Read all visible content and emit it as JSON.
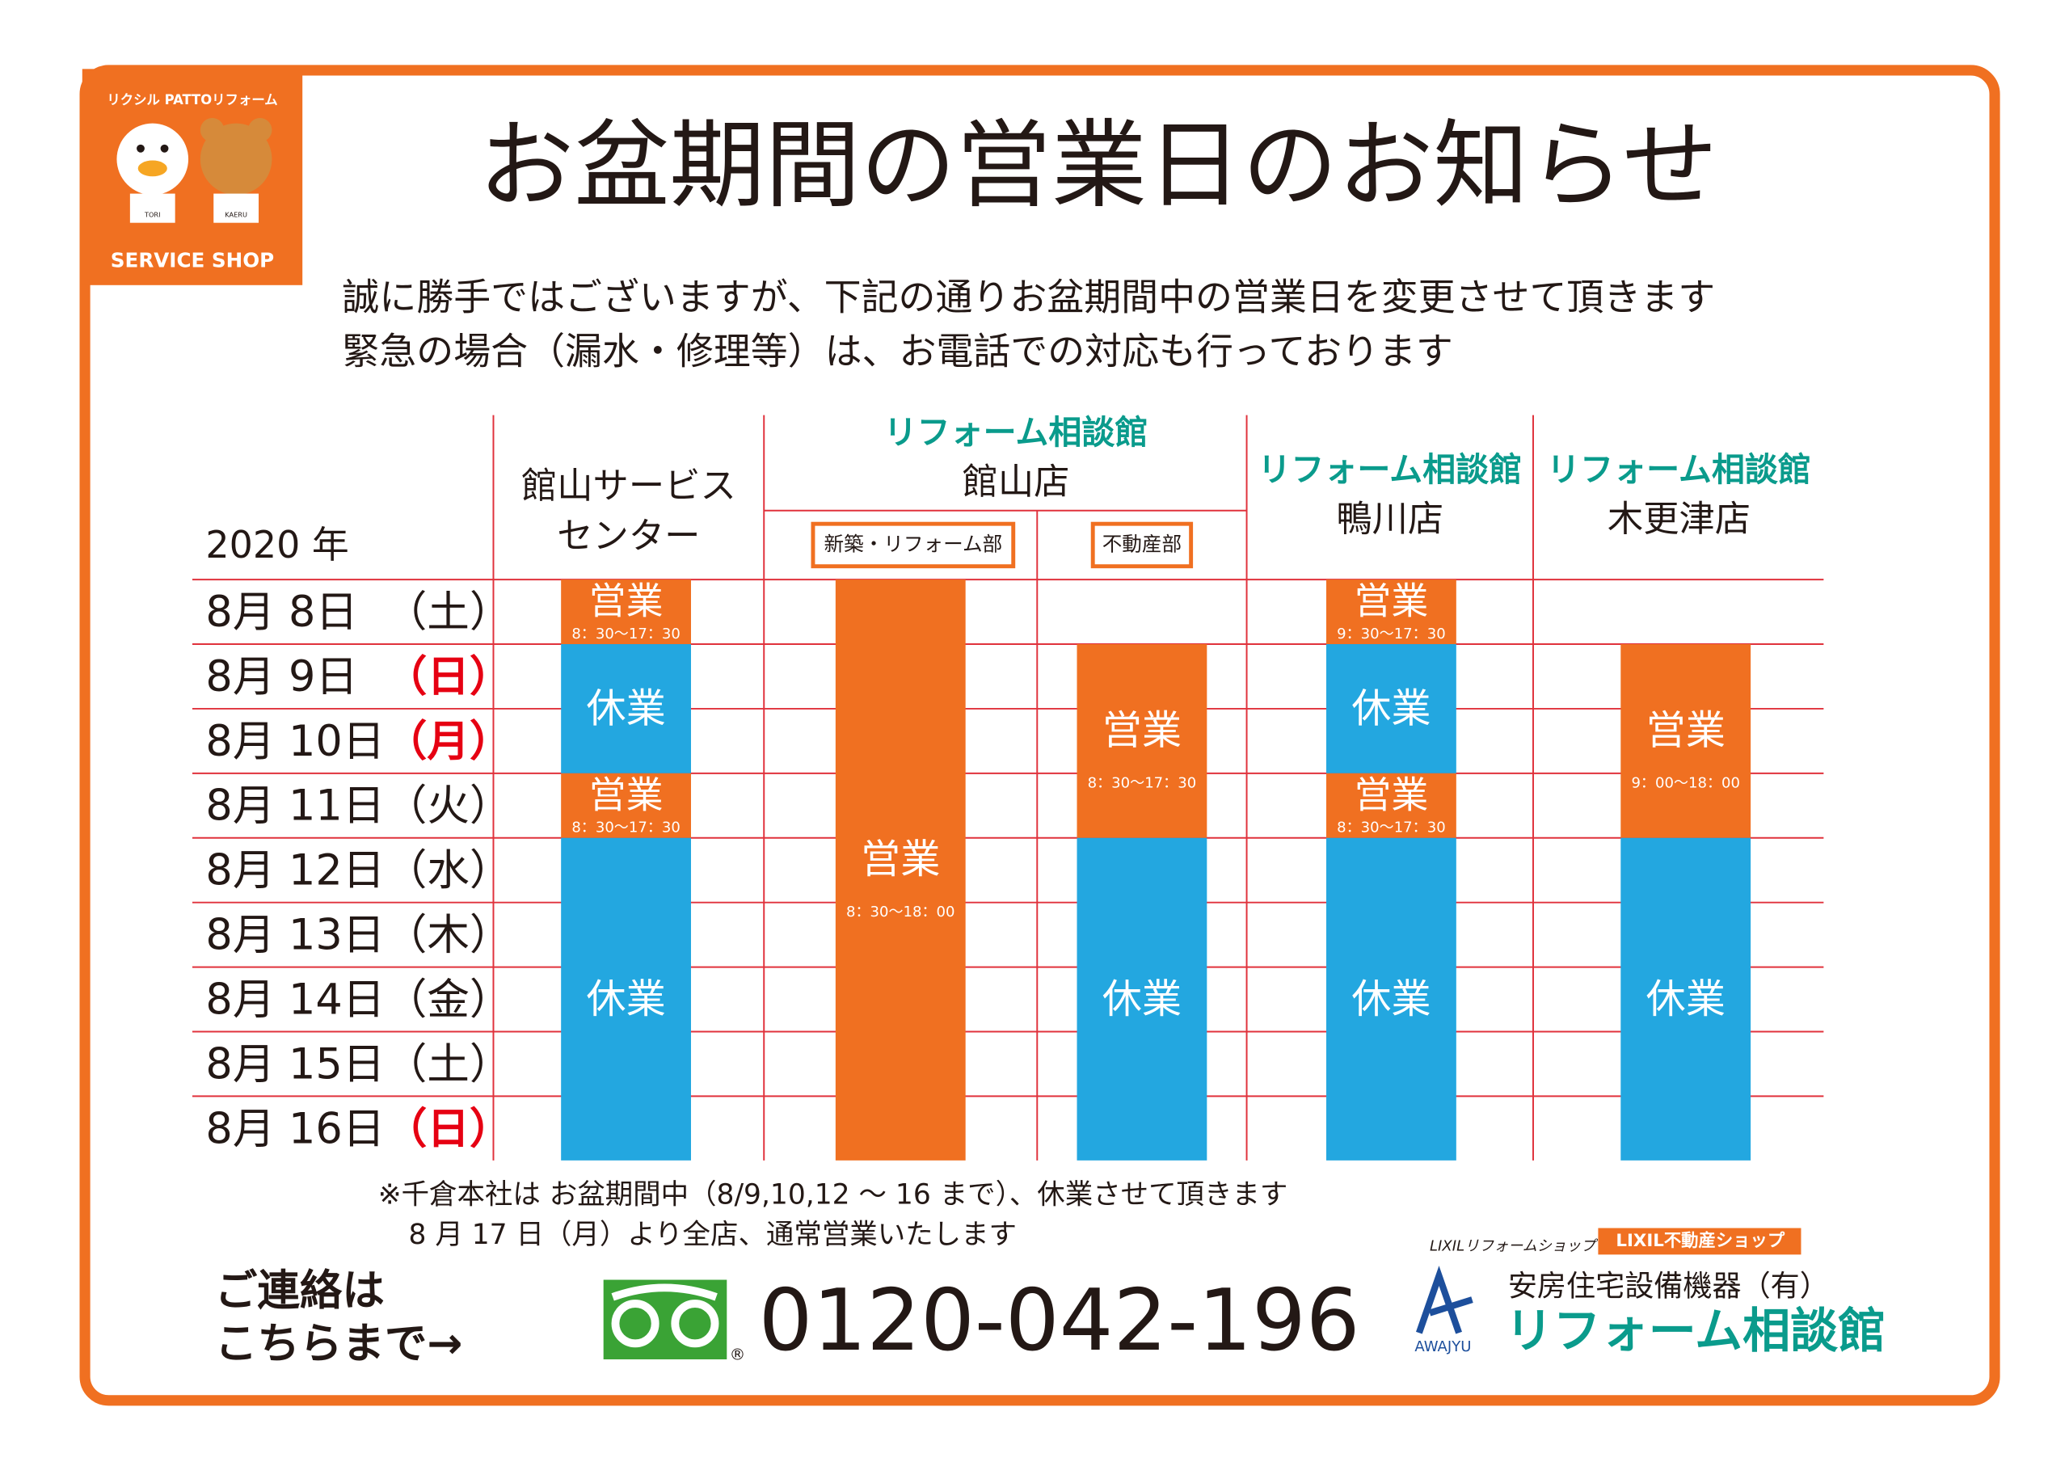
{
  "logo": {
    "brand": "リクシル PATTOリフォーム",
    "shop": "SERVICE SHOP",
    "char1": "TORI",
    "char2": "KAERU"
  },
  "title": "お盆期間の営業日のお知らせ",
  "intro": [
    "誠に勝手ではございますが、下記の通りお盆期間中の営業日を変更させて頂きます",
    "緊急の場合（漏水・修理等）は、お電話での対応も行っております"
  ],
  "table": {
    "year": "2020 年",
    "columns": [
      {
        "lines": [
          "館山サービス",
          "センター"
        ]
      },
      {
        "brand": "リフォーム相談館",
        "lines": [
          "館山店"
        ],
        "subs": [
          "新築・リフォーム部",
          "不動産部"
        ]
      },
      {
        "brand": "リフォーム相談館",
        "lines": [
          "鴨川店"
        ]
      },
      {
        "brand": "リフォーム相談館",
        "lines": [
          "木更津店"
        ]
      }
    ],
    "rows": [
      {
        "date": "8月  8日",
        "weekday": "（土）",
        "weekday_color": "#231815"
      },
      {
        "date": "8月  9日",
        "weekday": "（日）",
        "weekday_color": "#e60012"
      },
      {
        "date": "8月 10日",
        "weekday": "（月）",
        "weekday_color": "#e60012"
      },
      {
        "date": "8月 11日",
        "weekday": "（火）",
        "weekday_color": "#231815"
      },
      {
        "date": "8月 12日",
        "weekday": "（水）",
        "weekday_color": "#231815"
      },
      {
        "date": "8月 13日",
        "weekday": "（木）",
        "weekday_color": "#231815"
      },
      {
        "date": "8月 14日",
        "weekday": "（金）",
        "weekday_color": "#231815"
      },
      {
        "date": "8月 15日",
        "weekday": "（土）",
        "weekday_color": "#231815"
      },
      {
        "date": "8月 16日",
        "weekday": "（日）",
        "weekday_color": "#e60012"
      }
    ],
    "schedules": [
      [
        {
          "label": "営業",
          "hours": "8：30〜17：30",
          "color": "#f07021"
        },
        {
          "label": "休業",
          "color": "#23a7e0"
        },
        {
          "label": "営業",
          "hours": "8：30〜17：30",
          "color": "#f07021"
        },
        {
          "label": "休業",
          "color": "#23a7e0"
        }
      ],
      [
        {
          "label": "営業",
          "hours": "8：30〜18：00",
          "color": "#f07021"
        }
      ],
      [
        {
          "label": "営業",
          "hours": "8：30〜17：30",
          "color": "#f07021"
        },
        {
          "label": "休業",
          "color": "#23a7e0"
        }
      ],
      [
        {
          "label": "営業",
          "hours": "9：30〜17：30",
          "color": "#f07021"
        },
        {
          "label": "休業",
          "color": "#23a7e0"
        },
        {
          "label": "営業",
          "hours": "8：30〜17：30",
          "color": "#f07021"
        },
        {
          "label": "休業",
          "color": "#23a7e0"
        }
      ],
      [
        {
          "label": "営業",
          "hours": "9：00〜18：00",
          "color": "#f07021"
        },
        {
          "label": "休業",
          "color": "#23a7e0"
        }
      ]
    ]
  },
  "notes": [
    "※千倉本社は お盆期間中（8/9,10,12 〜 16 まで）、休業させて頂きます",
    "8 月 17 日（月）より全店、通常営業いたします"
  ],
  "contact": {
    "lines": [
      "ご連絡は",
      "こちらまで→"
    ],
    "phone": "0120-042-196",
    "mark": "®"
  },
  "logos": {
    "lixil_reform": "LIXILリフォームショップ",
    "lixil_fudosan": "LIXIL不動産ショップ",
    "company": "安房住宅設備機器（有）",
    "awajyu": "AWAJYU",
    "brand": "リフォーム相談館"
  }
}
